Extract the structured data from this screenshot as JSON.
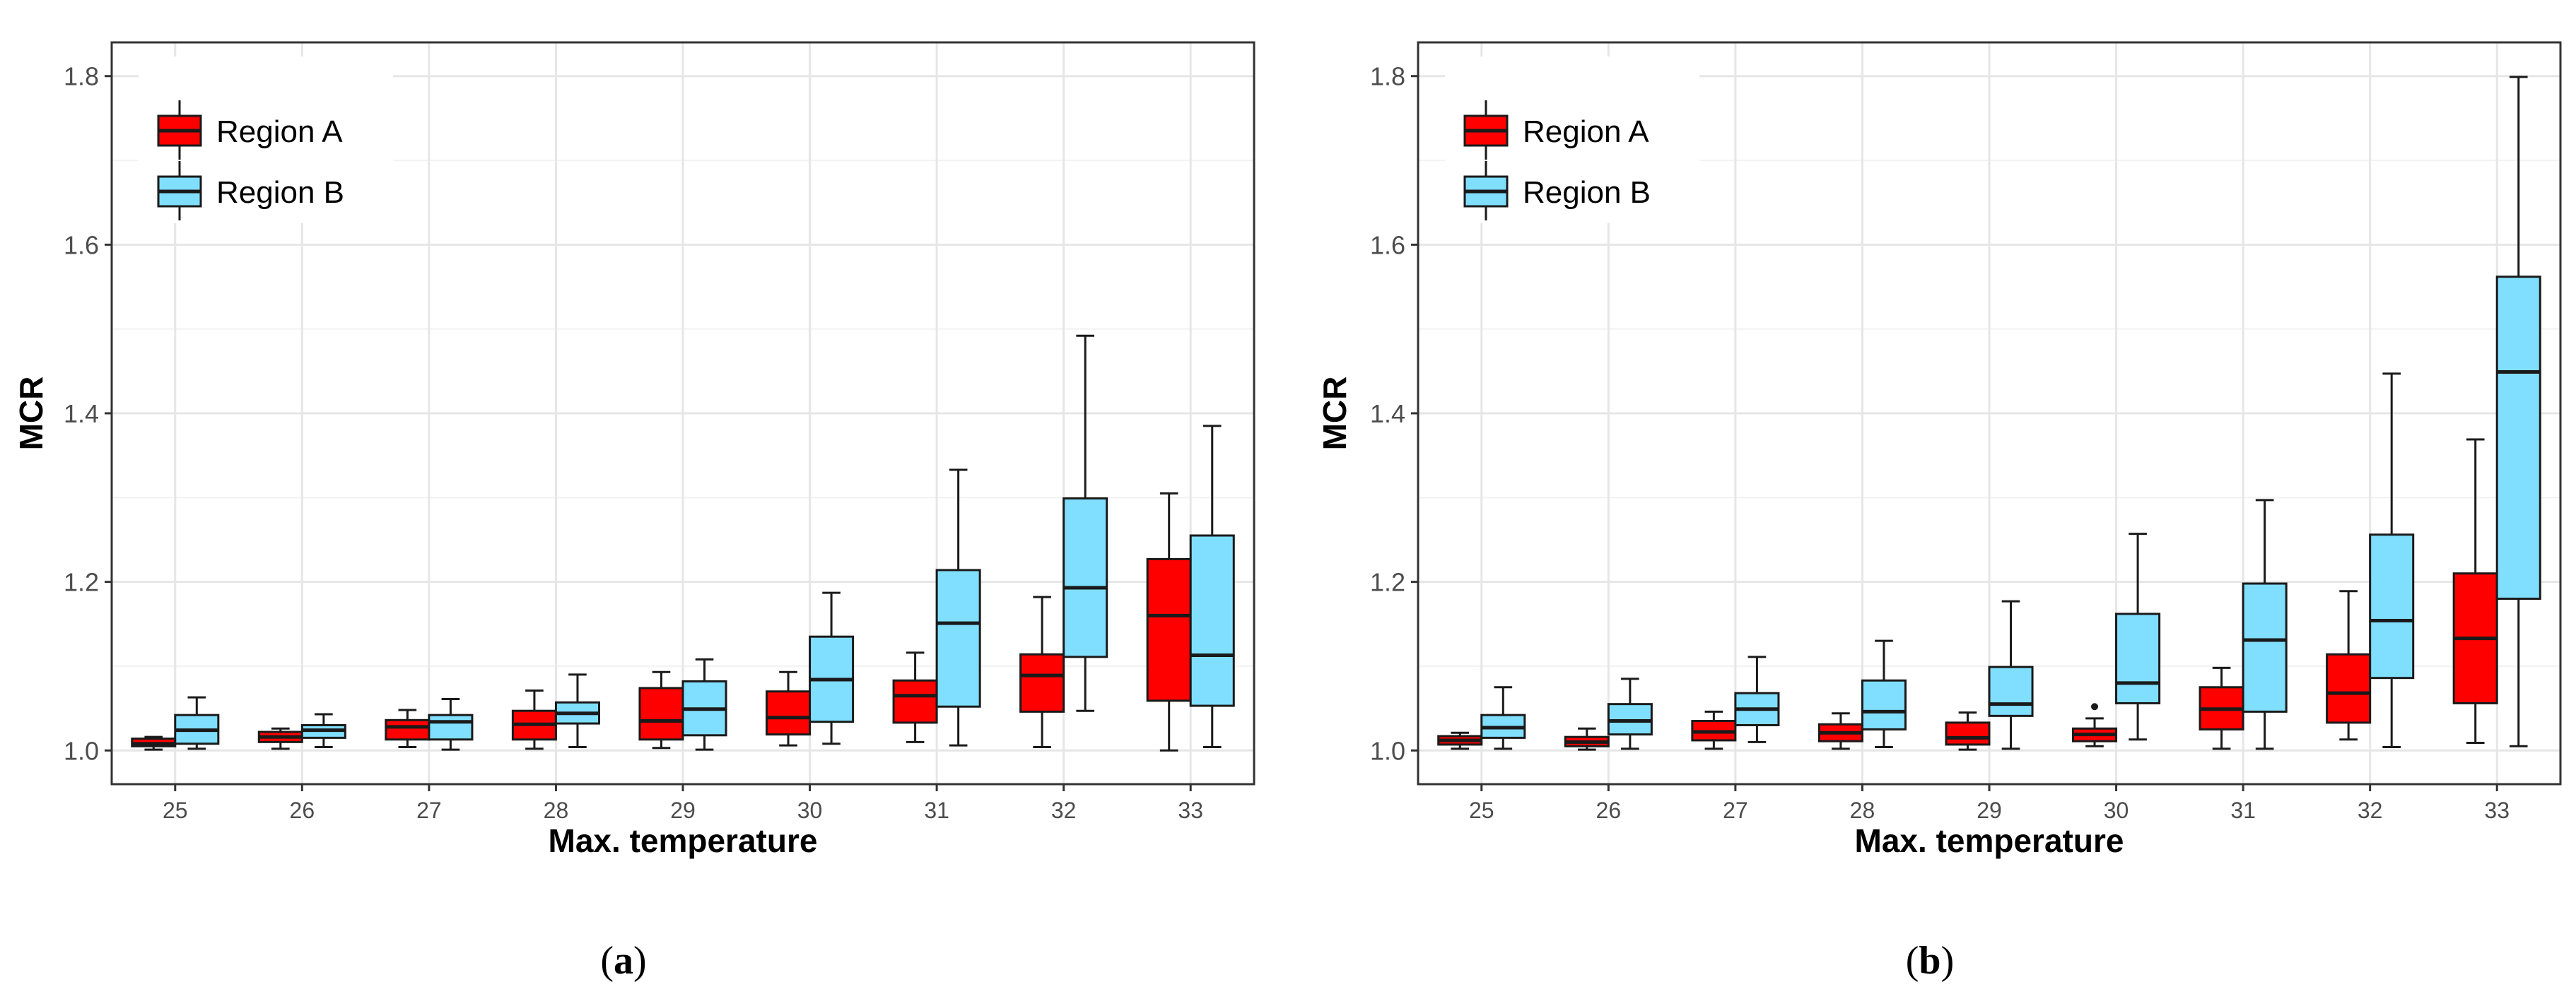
{
  "colors": {
    "region_a": "#ff0000",
    "region_b": "#80dfff",
    "grid": "#e6e6e6",
    "frame": "#333333",
    "box_line": "#1a1a1a",
    "tick_text": "#4d4d4d"
  },
  "chart_data": [
    {
      "type": "boxplot",
      "panel_label": "a",
      "xlabel": "Max. temperature",
      "ylabel": "MCR",
      "ylim": [
        0.96,
        1.84
      ],
      "yticks": [
        "1.0",
        "1.2",
        "1.4",
        "1.6",
        "1.8"
      ],
      "ytick_values": [
        1.0,
        1.2,
        1.4,
        1.6,
        1.8
      ],
      "categories": [
        "25",
        "26",
        "27",
        "28",
        "29",
        "30",
        "31",
        "32",
        "33"
      ],
      "legend": {
        "position": "top-left",
        "entries": [
          "Region A",
          "Region B"
        ]
      },
      "series": [
        {
          "name": "Region A",
          "color": "#ff0000",
          "boxes": [
            {
              "min": 1.001,
              "q1": 1.005,
              "median": 1.008,
              "q3": 1.014,
              "max": 1.016
            },
            {
              "min": 1.002,
              "q1": 1.01,
              "median": 1.016,
              "q3": 1.022,
              "max": 1.026
            },
            {
              "min": 1.004,
              "q1": 1.013,
              "median": 1.028,
              "q3": 1.036,
              "max": 1.048
            },
            {
              "min": 1.002,
              "q1": 1.013,
              "median": 1.031,
              "q3": 1.047,
              "max": 1.071
            },
            {
              "min": 1.003,
              "q1": 1.013,
              "median": 1.035,
              "q3": 1.074,
              "max": 1.093
            },
            {
              "min": 1.006,
              "q1": 1.019,
              "median": 1.039,
              "q3": 1.07,
              "max": 1.093
            },
            {
              "min": 1.01,
              "q1": 1.033,
              "median": 1.065,
              "q3": 1.083,
              "max": 1.116
            },
            {
              "min": 1.004,
              "q1": 1.046,
              "median": 1.089,
              "q3": 1.114,
              "max": 1.182
            },
            {
              "min": 1.0,
              "q1": 1.059,
              "median": 1.16,
              "q3": 1.227,
              "max": 1.305
            }
          ]
        },
        {
          "name": "Region B",
          "color": "#80dfff",
          "boxes": [
            {
              "min": 1.002,
              "q1": 1.008,
              "median": 1.024,
              "q3": 1.042,
              "max": 1.063
            },
            {
              "min": 1.004,
              "q1": 1.015,
              "median": 1.024,
              "q3": 1.03,
              "max": 1.043
            },
            {
              "min": 1.001,
              "q1": 1.013,
              "median": 1.034,
              "q3": 1.042,
              "max": 1.061
            },
            {
              "min": 1.004,
              "q1": 1.032,
              "median": 1.044,
              "q3": 1.057,
              "max": 1.09
            },
            {
              "min": 1.001,
              "q1": 1.018,
              "median": 1.049,
              "q3": 1.082,
              "max": 1.108
            },
            {
              "min": 1.008,
              "q1": 1.034,
              "median": 1.084,
              "q3": 1.135,
              "max": 1.187
            },
            {
              "min": 1.006,
              "q1": 1.052,
              "median": 1.151,
              "q3": 1.214,
              "max": 1.333
            },
            {
              "min": 1.047,
              "q1": 1.111,
              "median": 1.193,
              "q3": 1.299,
              "max": 1.492
            },
            {
              "min": 1.004,
              "q1": 1.053,
              "median": 1.113,
              "q3": 1.255,
              "max": 1.385
            }
          ]
        }
      ]
    },
    {
      "type": "boxplot",
      "panel_label": "b",
      "xlabel": "Max. temperature",
      "ylabel": "MCR",
      "ylim": [
        0.96,
        1.84
      ],
      "yticks": [
        "1.0",
        "1.2",
        "1.4",
        "1.6",
        "1.8"
      ],
      "ytick_values": [
        1.0,
        1.2,
        1.4,
        1.6,
        1.8
      ],
      "categories": [
        "25",
        "26",
        "27",
        "28",
        "29",
        "30",
        "31",
        "32",
        "33"
      ],
      "legend": {
        "position": "top-left",
        "entries": [
          "Region A",
          "Region B"
        ]
      },
      "series": [
        {
          "name": "Region A",
          "color": "#ff0000",
          "boxes": [
            {
              "min": 1.002,
              "q1": 1.007,
              "median": 1.012,
              "q3": 1.017,
              "max": 1.021
            },
            {
              "min": 1.001,
              "q1": 1.005,
              "median": 1.01,
              "q3": 1.016,
              "max": 1.026
            },
            {
              "min": 1.002,
              "q1": 1.012,
              "median": 1.022,
              "q3": 1.035,
              "max": 1.046
            },
            {
              "min": 1.002,
              "q1": 1.011,
              "median": 1.021,
              "q3": 1.031,
              "max": 1.044
            },
            {
              "min": 1.001,
              "q1": 1.007,
              "median": 1.015,
              "q3": 1.033,
              "max": 1.045
            },
            {
              "min": 1.005,
              "q1": 1.011,
              "median": 1.019,
              "q3": 1.026,
              "max": 1.038,
              "outliers": [
                1.052
              ]
            },
            {
              "min": 1.002,
              "q1": 1.025,
              "median": 1.049,
              "q3": 1.075,
              "max": 1.098
            },
            {
              "min": 1.013,
              "q1": 1.033,
              "median": 1.068,
              "q3": 1.114,
              "max": 1.189
            },
            {
              "min": 1.009,
              "q1": 1.056,
              "median": 1.133,
              "q3": 1.21,
              "max": 1.369
            }
          ]
        },
        {
          "name": "Region B",
          "color": "#80dfff",
          "boxes": [
            {
              "min": 1.002,
              "q1": 1.015,
              "median": 1.027,
              "q3": 1.042,
              "max": 1.075
            },
            {
              "min": 1.002,
              "q1": 1.019,
              "median": 1.035,
              "q3": 1.055,
              "max": 1.085
            },
            {
              "min": 1.01,
              "q1": 1.03,
              "median": 1.049,
              "q3": 1.068,
              "max": 1.111
            },
            {
              "min": 1.004,
              "q1": 1.025,
              "median": 1.046,
              "q3": 1.083,
              "max": 1.13
            },
            {
              "min": 1.002,
              "q1": 1.041,
              "median": 1.055,
              "q3": 1.099,
              "max": 1.177
            },
            {
              "min": 1.013,
              "q1": 1.056,
              "median": 1.08,
              "q3": 1.162,
              "max": 1.257
            },
            {
              "min": 1.002,
              "q1": 1.046,
              "median": 1.131,
              "q3": 1.198,
              "max": 1.297
            },
            {
              "min": 1.004,
              "q1": 1.086,
              "median": 1.154,
              "q3": 1.256,
              "max": 1.447
            },
            {
              "min": 1.005,
              "q1": 1.18,
              "median": 1.449,
              "q3": 1.562,
              "max": 1.799
            }
          ]
        }
      ]
    }
  ]
}
